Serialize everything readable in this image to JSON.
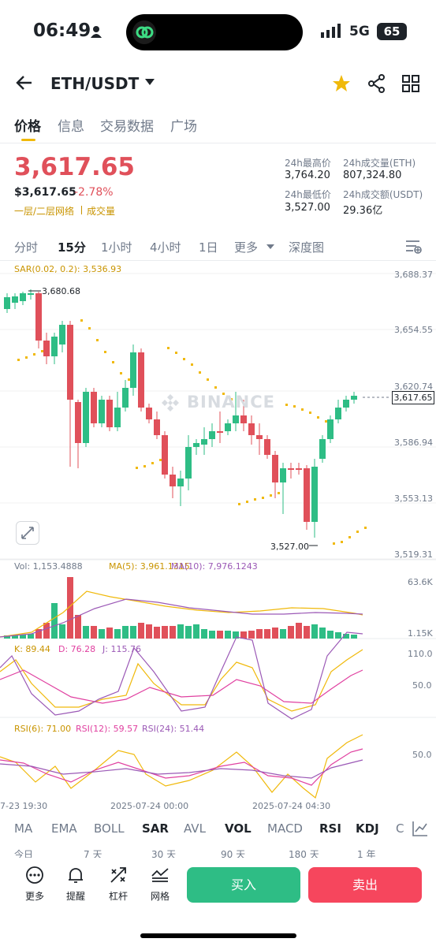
{
  "status": {
    "time": "06:49",
    "network": "5G",
    "battery": "65"
  },
  "header": {
    "pair": "ETH/USDT"
  },
  "tabs": [
    "价格",
    "信息",
    "交易数据",
    "广场"
  ],
  "price": {
    "last": "3,617.65",
    "usd": "$3,617.65",
    "change": "-2.78%",
    "tag_depth": "一层/二层网络",
    "tag_volume": "成交量"
  },
  "stats": {
    "high_label": "24h最高价",
    "high": "3,764.20",
    "vol_eth_label": "24h成交量(ETH)",
    "vol_eth": "807,324.80",
    "low_label": "24h最低价",
    "low": "3,527.00",
    "vol_usdt_label": "24h成交额(USDT)",
    "vol_usdt": "29.36亿"
  },
  "intervals": [
    "分时",
    "15分",
    "1小时",
    "4小时",
    "1日",
    "更多",
    "深度图"
  ],
  "chart": {
    "sar_label": "SAR(0.02, 0.2): 3,536.93",
    "y_ticks": [
      "3,688.37",
      "3,654.55",
      "3,620.74",
      "3,586.94",
      "3,553.13",
      "3,519.31"
    ],
    "high_marker": "3,680.68",
    "low_marker": "3,527.00",
    "current_tag": "3,617.65",
    "watermark": "BINANCE",
    "vol_label": "Vol: 1,153.4888",
    "ma5_label": "MA(5): 3,961.1315",
    "ma10_label": "MA(10): 7,976.1243",
    "vol_ticks": [
      "63.6K",
      "1.15K"
    ],
    "k_label": "K: 89.44",
    "d_label": "D: 76.28",
    "j_label": "J: 115.76",
    "kdj_ticks": [
      "110.0",
      "50.0"
    ],
    "rsi6_label": "RSI(6): 71.00",
    "rsi12_label": "RSI(12): 59.57",
    "rsi24_label": "RSI(24): 51.44",
    "rsi_ticks": [
      "50.0"
    ],
    "time_ticks": [
      "7-23 19:30",
      "2025-07-24 00:00",
      "2025-07-24 04:30"
    ],
    "colors": {
      "up": "#2ebd85",
      "down": "#e0505a",
      "sar": "#f0b90b",
      "ma5": "#f0b90b",
      "ma10": "#9b59b6"
    }
  },
  "indicators": [
    "MA",
    "EMA",
    "BOLL",
    "SAR",
    "AVL",
    "VOL",
    "MACD",
    "RSI",
    "KDJ",
    "C"
  ],
  "periods": [
    "今日",
    "7 天",
    "30 天",
    "90 天",
    "180 天",
    "1 年"
  ],
  "bottom": {
    "more": "更多",
    "alert": "提醒",
    "leverage": "杠杆",
    "grid": "网格",
    "buy": "买入",
    "sell": "卖出"
  }
}
